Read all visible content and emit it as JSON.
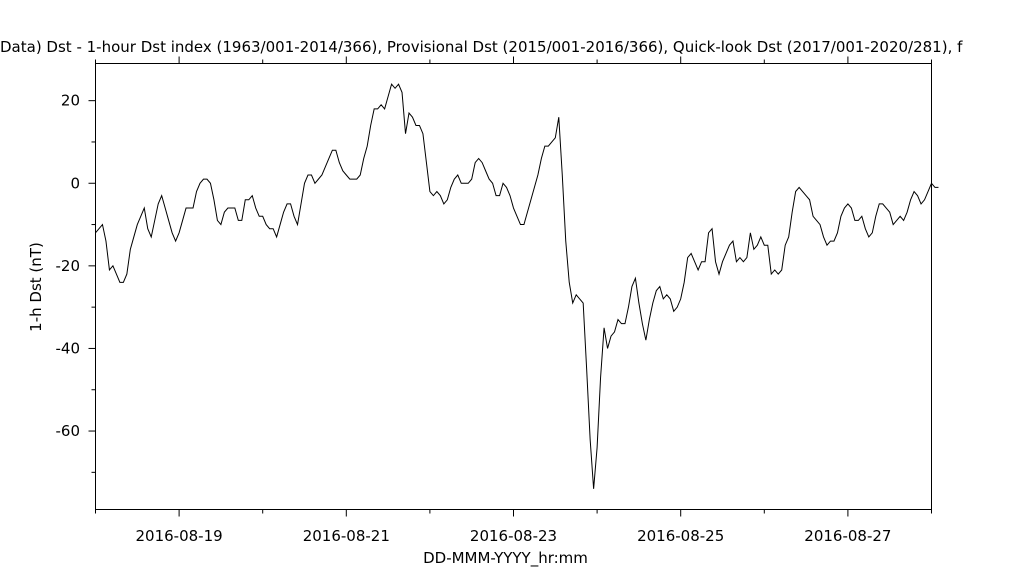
{
  "chart_data": {
    "type": "line",
    "title": "Data)  Dst - 1-hour Dst index (1963/001-2014/366), Provisional Dst (2015/001-2016/366), Quick-look Dst (2017/001-2020/281), f",
    "xlabel": "DD-MMM-YYYY_hr:mm",
    "ylabel": "1-h Dst (nT)",
    "xlim": [
      "2016-08-18 00:00",
      "2016-08-28 00:00"
    ],
    "ylim": [
      -79,
      29
    ],
    "x_ticks": [
      "2016-08-19",
      "2016-08-21",
      "2016-08-23",
      "2016-08-25",
      "2016-08-27"
    ],
    "y_ticks": [
      20,
      0,
      -20,
      -40,
      -60
    ],
    "grid": false,
    "series": [
      {
        "start": "2016-08-18 00:00",
        "step_hours": 1,
        "values": [
          -12,
          -11,
          -10,
          -14,
          -21,
          -20,
          -22,
          -24,
          -24,
          -22,
          -16,
          -13,
          -10,
          -8,
          -6,
          -11,
          -13,
          -9,
          -5,
          -3,
          -6,
          -9,
          -12,
          -14,
          -12,
          -9,
          -6,
          -6,
          -6,
          -2,
          0,
          1,
          1,
          0,
          -4,
          -9,
          -10,
          -7,
          -6,
          -6,
          -6,
          -9,
          -9,
          -4,
          -4,
          -3,
          -6,
          -8,
          -8,
          -10,
          -11,
          -11,
          -13,
          -10,
          -7,
          -5,
          -5,
          -8,
          -10,
          -5,
          0,
          2,
          2,
          0,
          1,
          2,
          4,
          6,
          8,
          8,
          5,
          3,
          2,
          1,
          1,
          1,
          2,
          6,
          9,
          14,
          18,
          18,
          19,
          18,
          21,
          24,
          23,
          24,
          22,
          12,
          17,
          16,
          14,
          14,
          12,
          5,
          -2,
          -3,
          -2,
          -3,
          -5,
          -4,
          -1,
          1,
          2,
          0,
          0,
          0,
          1,
          5,
          6,
          5,
          3,
          1,
          0,
          -3,
          -3,
          0,
          -1,
          -3,
          -6,
          -8,
          -10,
          -10,
          -7,
          -4,
          -1,
          2,
          6,
          9,
          9,
          10,
          11,
          16,
          2,
          -14,
          -24,
          -29,
          -27,
          -28,
          -29,
          -45,
          -62,
          -74,
          -64,
          -47,
          -35,
          -40,
          -37,
          -36,
          -33,
          -34,
          -34,
          -30,
          -25,
          -23,
          -29,
          -34,
          -38,
          -33,
          -29,
          -26,
          -25,
          -28,
          -27,
          -28,
          -31,
          -30,
          -28,
          -24,
          -18,
          -17,
          -19,
          -21,
          -19,
          -19,
          -12,
          -11,
          -19,
          -22,
          -19,
          -17,
          -15,
          -14,
          -19,
          -18,
          -19,
          -18,
          -12,
          -16,
          -15,
          -13,
          -15,
          -15,
          -22,
          -21,
          -22,
          -21,
          -15,
          -13,
          -7,
          -2,
          -1,
          -2,
          -3,
          -4,
          -8,
          -9,
          -10,
          -13,
          -15,
          -14,
          -14,
          -12,
          -8,
          -6,
          -5,
          -6,
          -9,
          -9,
          -8,
          -11,
          -13,
          -12,
          -8,
          -5,
          -5,
          -6,
          -7,
          -10,
          -9,
          -8,
          -9,
          -7,
          -4,
          -2,
          -3,
          -5,
          -4,
          -2,
          0,
          -1,
          -1
        ]
      }
    ]
  }
}
